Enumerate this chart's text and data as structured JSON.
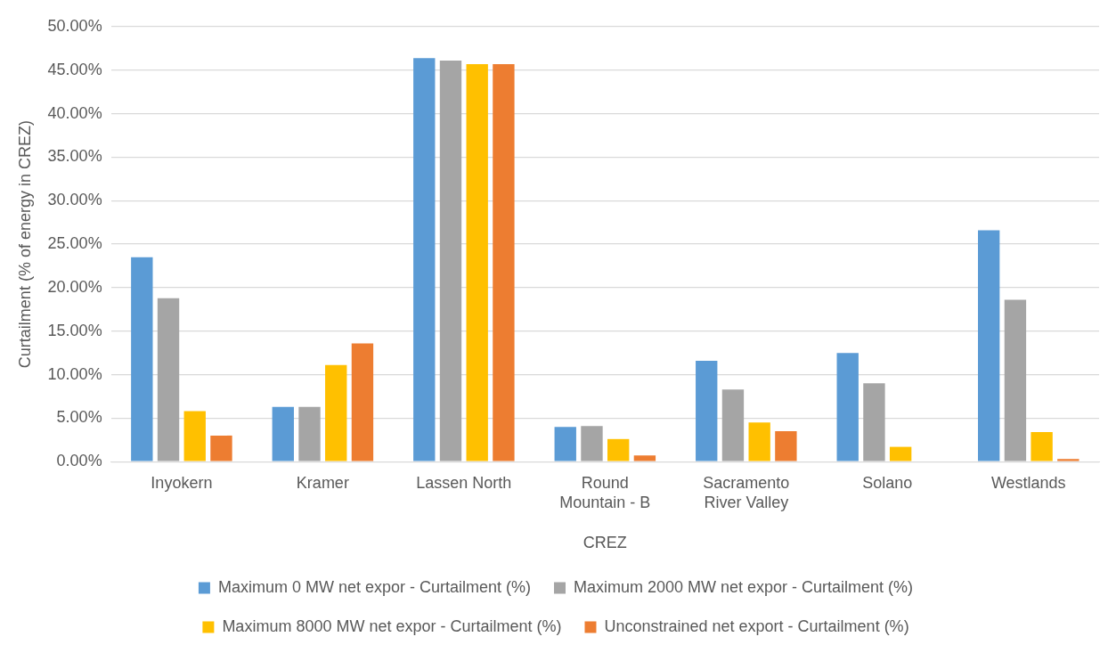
{
  "chart_data": {
    "type": "bar",
    "xlabel": "CREZ",
    "ylabel": "Curtailment (% of energy in CREZ)",
    "categories": [
      "Inyokern",
      "Kramer",
      "Lassen North",
      "Round Mountain - B",
      "Sacramento River Valley",
      "Solano",
      "Westlands"
    ],
    "series": [
      {
        "name": "Maximum 0 MW net expor - Curtailment (%)",
        "color": "#5b9bd5",
        "values": [
          23.5,
          6.3,
          46.4,
          4.0,
          11.6,
          12.5,
          26.6
        ]
      },
      {
        "name": "Maximum 2000 MW net expor - Curtailment (%)",
        "color": "#a5a5a5",
        "values": [
          18.8,
          6.3,
          46.1,
          4.1,
          8.3,
          9.0,
          18.6
        ]
      },
      {
        "name": "Maximum 8000 MW net expor - Curtailment (%)",
        "color": "#ffc000",
        "values": [
          5.8,
          11.1,
          45.7,
          2.6,
          4.5,
          1.7,
          3.4
        ]
      },
      {
        "name": "Unconstrained net export - Curtailment (%)",
        "color": "#ed7d31",
        "values": [
          3.0,
          13.6,
          45.7,
          0.7,
          3.5,
          0,
          0.3
        ]
      }
    ],
    "ylim": [
      0,
      50
    ],
    "yticks": [
      {
        "value": 0,
        "label": "0.00%"
      },
      {
        "value": 5,
        "label": "5.00%"
      },
      {
        "value": 10,
        "label": "10.00%"
      },
      {
        "value": 15,
        "label": "15.00%"
      },
      {
        "value": 20,
        "label": "20.00%"
      },
      {
        "value": 25,
        "label": "25.00%"
      },
      {
        "value": 30,
        "label": "30.00%"
      },
      {
        "value": 35,
        "label": "35.00%"
      },
      {
        "value": 40,
        "label": "40.00%"
      },
      {
        "value": 45,
        "label": "45.00%"
      },
      {
        "value": 50,
        "label": "50.00%"
      }
    ],
    "grid": "y",
    "legend": "bottom"
  }
}
